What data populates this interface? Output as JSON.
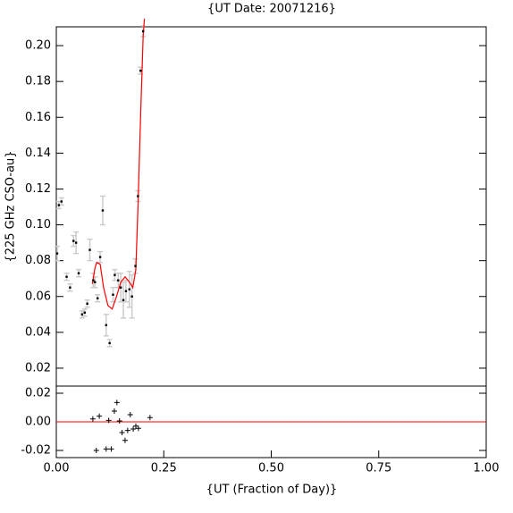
{
  "chart_data": [
    {
      "type": "scatter",
      "title": "{UT Date: 20071216}",
      "y_label": "{225 GHz CSO-au}",
      "x": [
        0.002,
        0.006,
        0.012,
        0.024,
        0.032,
        0.04,
        0.046,
        0.052,
        0.06,
        0.066,
        0.072,
        0.078,
        0.086,
        0.09,
        0.096,
        0.102,
        0.108,
        0.116,
        0.124,
        0.132,
        0.136,
        0.144,
        0.15,
        0.156,
        0.162,
        0.17,
        0.176,
        0.184,
        0.19,
        0.196,
        0.202
      ],
      "values": [
        0.084,
        0.111,
        0.113,
        0.071,
        0.065,
        0.091,
        0.09,
        0.073,
        0.05,
        0.051,
        0.056,
        0.086,
        0.069,
        0.068,
        0.059,
        0.082,
        0.108,
        0.044,
        0.034,
        0.061,
        0.072,
        0.069,
        0.065,
        0.058,
        0.063,
        0.064,
        0.06,
        0.077,
        0.116,
        0.186,
        0.208
      ],
      "errors": [
        0.004,
        0.002,
        0.002,
        0.002,
        0.002,
        0.003,
        0.006,
        0.002,
        0.002,
        0.002,
        0.002,
        0.006,
        0.004,
        0.003,
        0.002,
        0.003,
        0.008,
        0.006,
        0.002,
        0.004,
        0.003,
        0.004,
        0.008,
        0.01,
        0.006,
        0.01,
        0.012,
        0.004,
        0.003,
        0.002,
        0.003
      ],
      "color": "#000000",
      "error_color": "#cccccc",
      "fit": {
        "x": [
          0.084,
          0.09,
          0.094,
          0.102,
          0.11,
          0.12,
          0.13,
          0.14,
          0.15,
          0.16,
          0.17,
          0.178,
          0.185,
          0.19,
          0.196,
          0.202,
          0.205
        ],
        "values": [
          0.067,
          0.076,
          0.079,
          0.078,
          0.065,
          0.055,
          0.053,
          0.06,
          0.068,
          0.071,
          0.068,
          0.065,
          0.075,
          0.11,
          0.16,
          0.205,
          0.215
        ],
        "color": "#ff0000"
      },
      "xlim": [
        0,
        1
      ],
      "ylim": [
        0.01,
        0.2105
      ],
      "yticks": [
        0.02,
        0.04,
        0.06,
        0.08,
        {
          "value": 0.1,
          "label": "0.10"
        },
        0.12,
        0.14,
        0.16,
        0.18,
        {
          "value": 0.2,
          "label": "0.20"
        }
      ]
    },
    {
      "type": "residual",
      "x_label": "{UT (Fraction of Day)}",
      "x": [
        0.085,
        0.093,
        0.1,
        0.116,
        0.122,
        0.128,
        0.135,
        0.141,
        0.147,
        0.153,
        0.16,
        0.166,
        0.172,
        0.179,
        0.185,
        0.191,
        0.218
      ],
      "values": [
        0.002,
        -0.02,
        0.004,
        -0.019,
        0.001,
        -0.019,
        0.0075,
        0.0135,
        0.0006,
        -0.0075,
        -0.013,
        -0.006,
        0.005,
        -0.005,
        -0.003,
        -0.0045,
        0.003
      ],
      "color": "#000000",
      "reference_line": {
        "value": 0,
        "color": "#ff0000"
      },
      "xlim": [
        0,
        1
      ],
      "ylim": [
        -0.025,
        0.025
      ],
      "xticks": [
        {
          "value": 0,
          "label": "0.00"
        },
        0.25,
        {
          "value": 0.5,
          "label": "0.50"
        },
        0.75,
        {
          "value": 1,
          "label": "1.00"
        }
      ],
      "yticks": [
        -0.02,
        {
          "value": 0,
          "label": "0.00"
        },
        0.02
      ]
    }
  ]
}
